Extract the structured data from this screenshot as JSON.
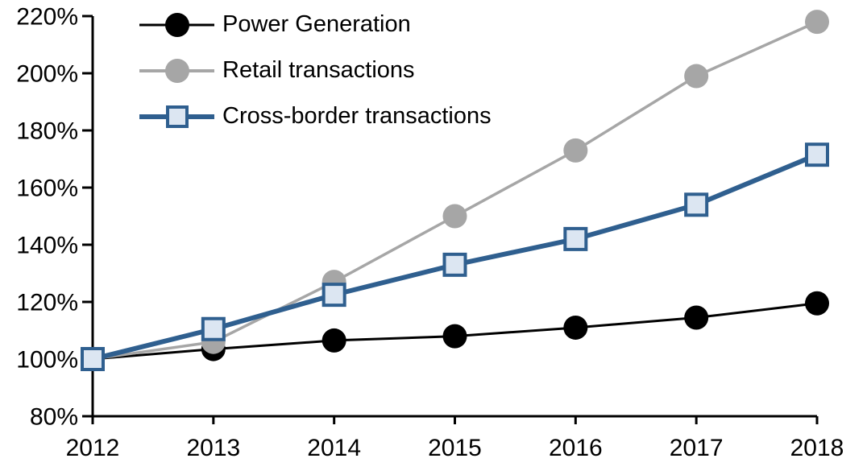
{
  "chart_data": {
    "type": "line",
    "title": "",
    "xlabel": "",
    "ylabel": "",
    "x": [
      "2012",
      "2013",
      "2014",
      "2015",
      "2016",
      "2017",
      "2018"
    ],
    "series": [
      {
        "name": "Power Generation",
        "color": "#000000",
        "line_width": 3,
        "marker": "circle",
        "marker_fill": "#000000",
        "values": [
          100,
          103.5,
          106.5,
          108,
          111,
          114.5,
          119.5
        ]
      },
      {
        "name": "Retail transactions",
        "color": "#a6a6a6",
        "line_width": 3.5,
        "marker": "circle",
        "marker_fill": "#a6a6a6",
        "values": [
          100,
          106,
          127,
          150,
          173,
          199,
          218
        ]
      },
      {
        "name": "Cross-border transactions",
        "color": "#2f5f8f",
        "line_width": 6,
        "marker": "square",
        "marker_fill": "#dce6f2",
        "values": [
          100,
          110.5,
          122.5,
          133,
          142,
          154,
          171.5
        ]
      }
    ],
    "ylim": [
      80,
      220
    ],
    "ytick_step": 20,
    "ytick_labels": [
      "80%",
      "100%",
      "120%",
      "140%",
      "160%",
      "180%",
      "200%",
      "220%"
    ],
    "axis_color": "#000000",
    "tick_label_font_px": 30,
    "grid": false,
    "legend_position": "top-left"
  }
}
